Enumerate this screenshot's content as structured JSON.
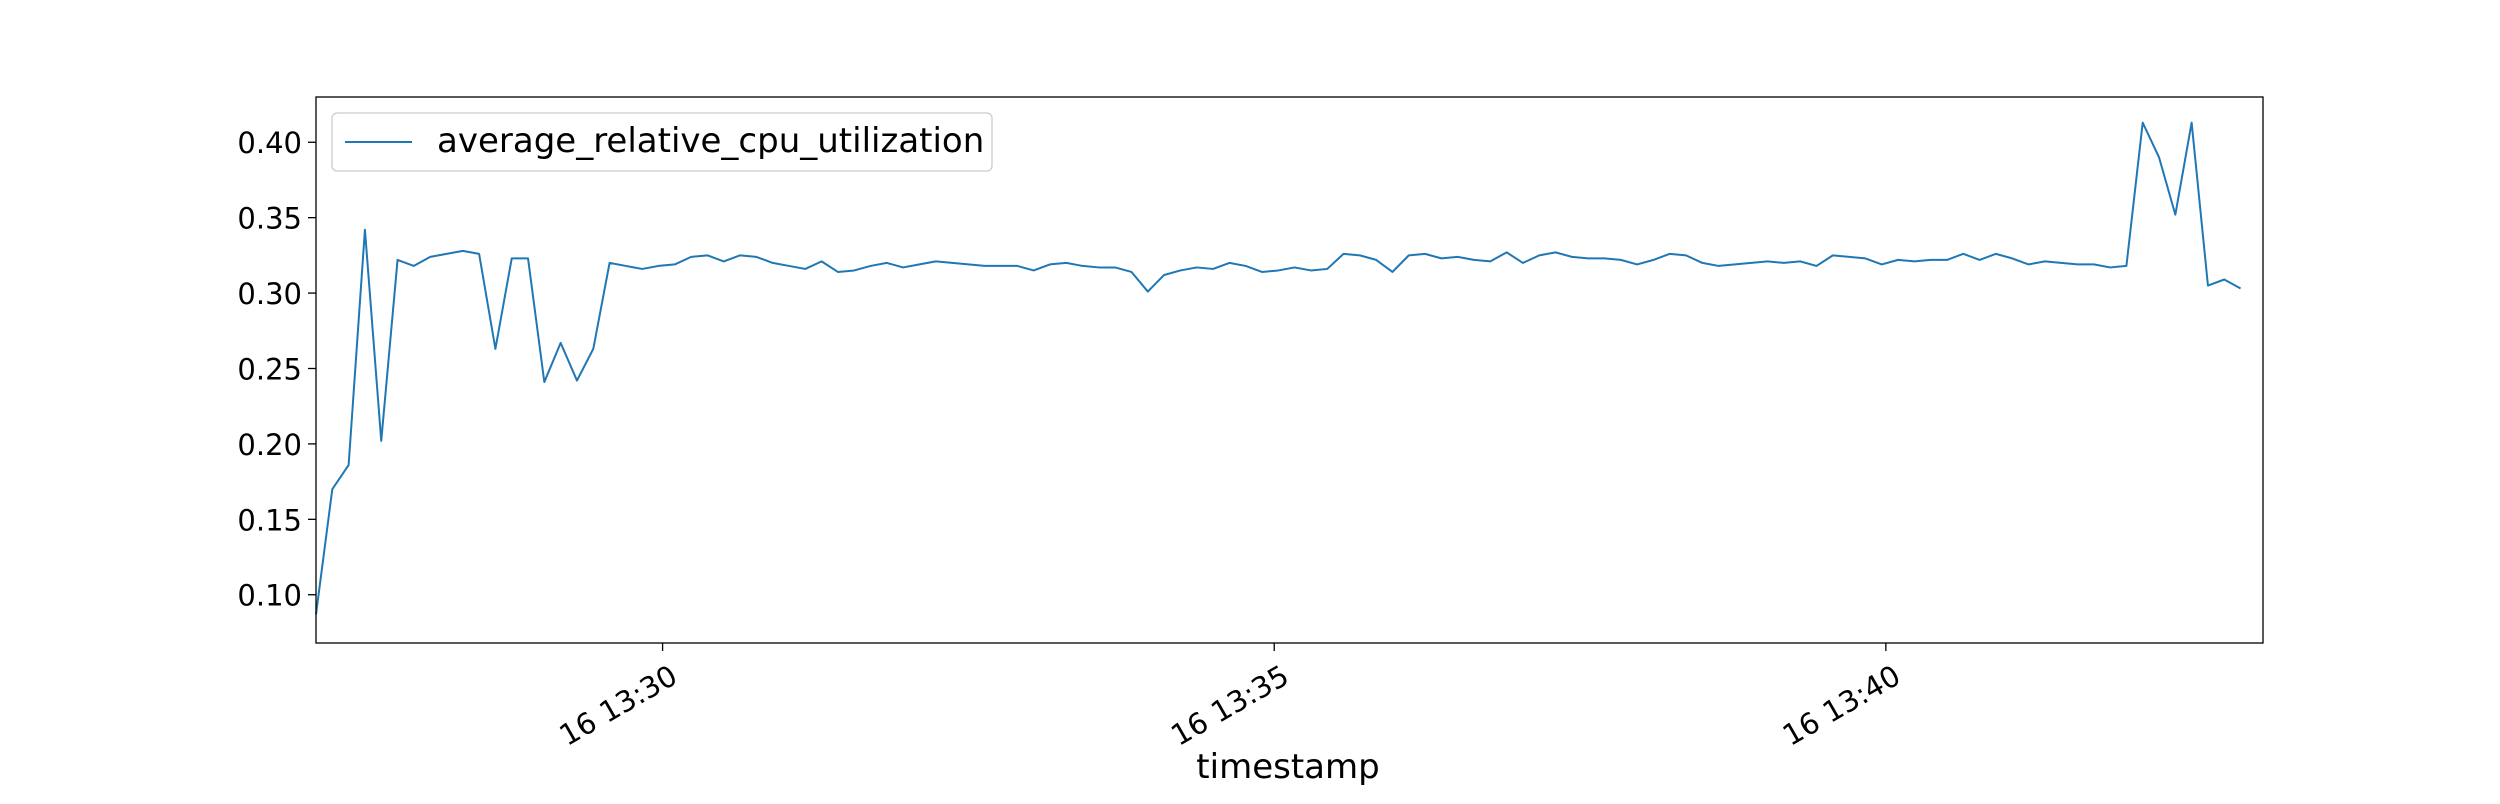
{
  "chart_data": {
    "type": "line",
    "title": "",
    "xlabel": "timestamp",
    "ylabel": "",
    "x_tick_labels": [
      "16 13:30",
      "16 13:35",
      "16 13:40"
    ],
    "y_tick_labels": [
      "0.10",
      "0.15",
      "0.20",
      "0.25",
      "0.30",
      "0.35",
      "0.40"
    ],
    "y_ticks": [
      0.1,
      0.15,
      0.2,
      0.25,
      0.3,
      0.35,
      0.4
    ],
    "xlim": [
      "13:27:10",
      "13:43:05"
    ],
    "ylim": [
      0.068,
      0.43
    ],
    "grid": false,
    "legend_position": "upper-left",
    "colors": {
      "series": "#1f77b4",
      "axes": "#000000",
      "background": "#ffffff"
    },
    "series": [
      {
        "name": "average_relative_cpu_utilization",
        "time_start": "13:27:10",
        "time_step_seconds": 8,
        "values": [
          0.087,
          0.17,
          0.186,
          0.342,
          0.202,
          0.322,
          0.318,
          0.324,
          0.326,
          0.328,
          0.326,
          0.263,
          0.323,
          0.323,
          0.241,
          0.267,
          0.242,
          0.263,
          0.32,
          0.318,
          0.316,
          0.318,
          0.319,
          0.324,
          0.325,
          0.321,
          0.325,
          0.324,
          0.32,
          0.318,
          0.316,
          0.321,
          0.314,
          0.315,
          0.318,
          0.32,
          0.317,
          0.319,
          0.321,
          0.32,
          0.319,
          0.318,
          0.318,
          0.318,
          0.315,
          0.319,
          0.32,
          0.318,
          0.317,
          0.317,
          0.314,
          0.301,
          0.312,
          0.315,
          0.317,
          0.316,
          0.32,
          0.318,
          0.314,
          0.315,
          0.317,
          0.315,
          0.316,
          0.326,
          0.325,
          0.322,
          0.314,
          0.325,
          0.326,
          0.323,
          0.324,
          0.322,
          0.321,
          0.327,
          0.32,
          0.325,
          0.327,
          0.324,
          0.323,
          0.323,
          0.322,
          0.319,
          0.322,
          0.326,
          0.325,
          0.32,
          0.318,
          0.319,
          0.32,
          0.321,
          0.32,
          0.321,
          0.318,
          0.325,
          0.324,
          0.323,
          0.319,
          0.322,
          0.321,
          0.322,
          0.322,
          0.326,
          0.322,
          0.326,
          0.323,
          0.319,
          0.321,
          0.32,
          0.319,
          0.319,
          0.317,
          0.318,
          0.413,
          0.39,
          0.352,
          0.413,
          0.305,
          0.309,
          0.303
        ]
      }
    ]
  }
}
